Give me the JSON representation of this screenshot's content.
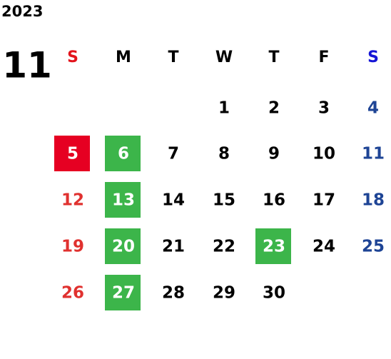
{
  "year": "2023",
  "month": "11",
  "weekdays": [
    "S",
    "M",
    "T",
    "W",
    "T",
    "F",
    "S"
  ],
  "weekday_colors": [
    "#e3141c",
    "#000000",
    "#000000",
    "#000000",
    "#000000",
    "#000000",
    "#1515d6"
  ],
  "day_colors": [
    "#e0312f",
    "#000000",
    "#000000",
    "#000000",
    "#000000",
    "#000000",
    "#1e4495"
  ],
  "weeks": [
    [
      null,
      null,
      null,
      1,
      2,
      3,
      4
    ],
    [
      {
        "day": 5,
        "box": "#e60022"
      },
      {
        "day": 6,
        "box": "#3cb54a"
      },
      7,
      8,
      9,
      10,
      11
    ],
    [
      12,
      {
        "day": 13,
        "box": "#3cb54a"
      },
      14,
      15,
      16,
      17,
      18
    ],
    [
      19,
      {
        "day": 20,
        "box": "#3cb54a"
      },
      21,
      22,
      {
        "day": 23,
        "box": "#3cb54a"
      },
      24,
      25
    ],
    [
      26,
      {
        "day": 27,
        "box": "#3cb54a"
      },
      28,
      29,
      30,
      null,
      null
    ]
  ]
}
